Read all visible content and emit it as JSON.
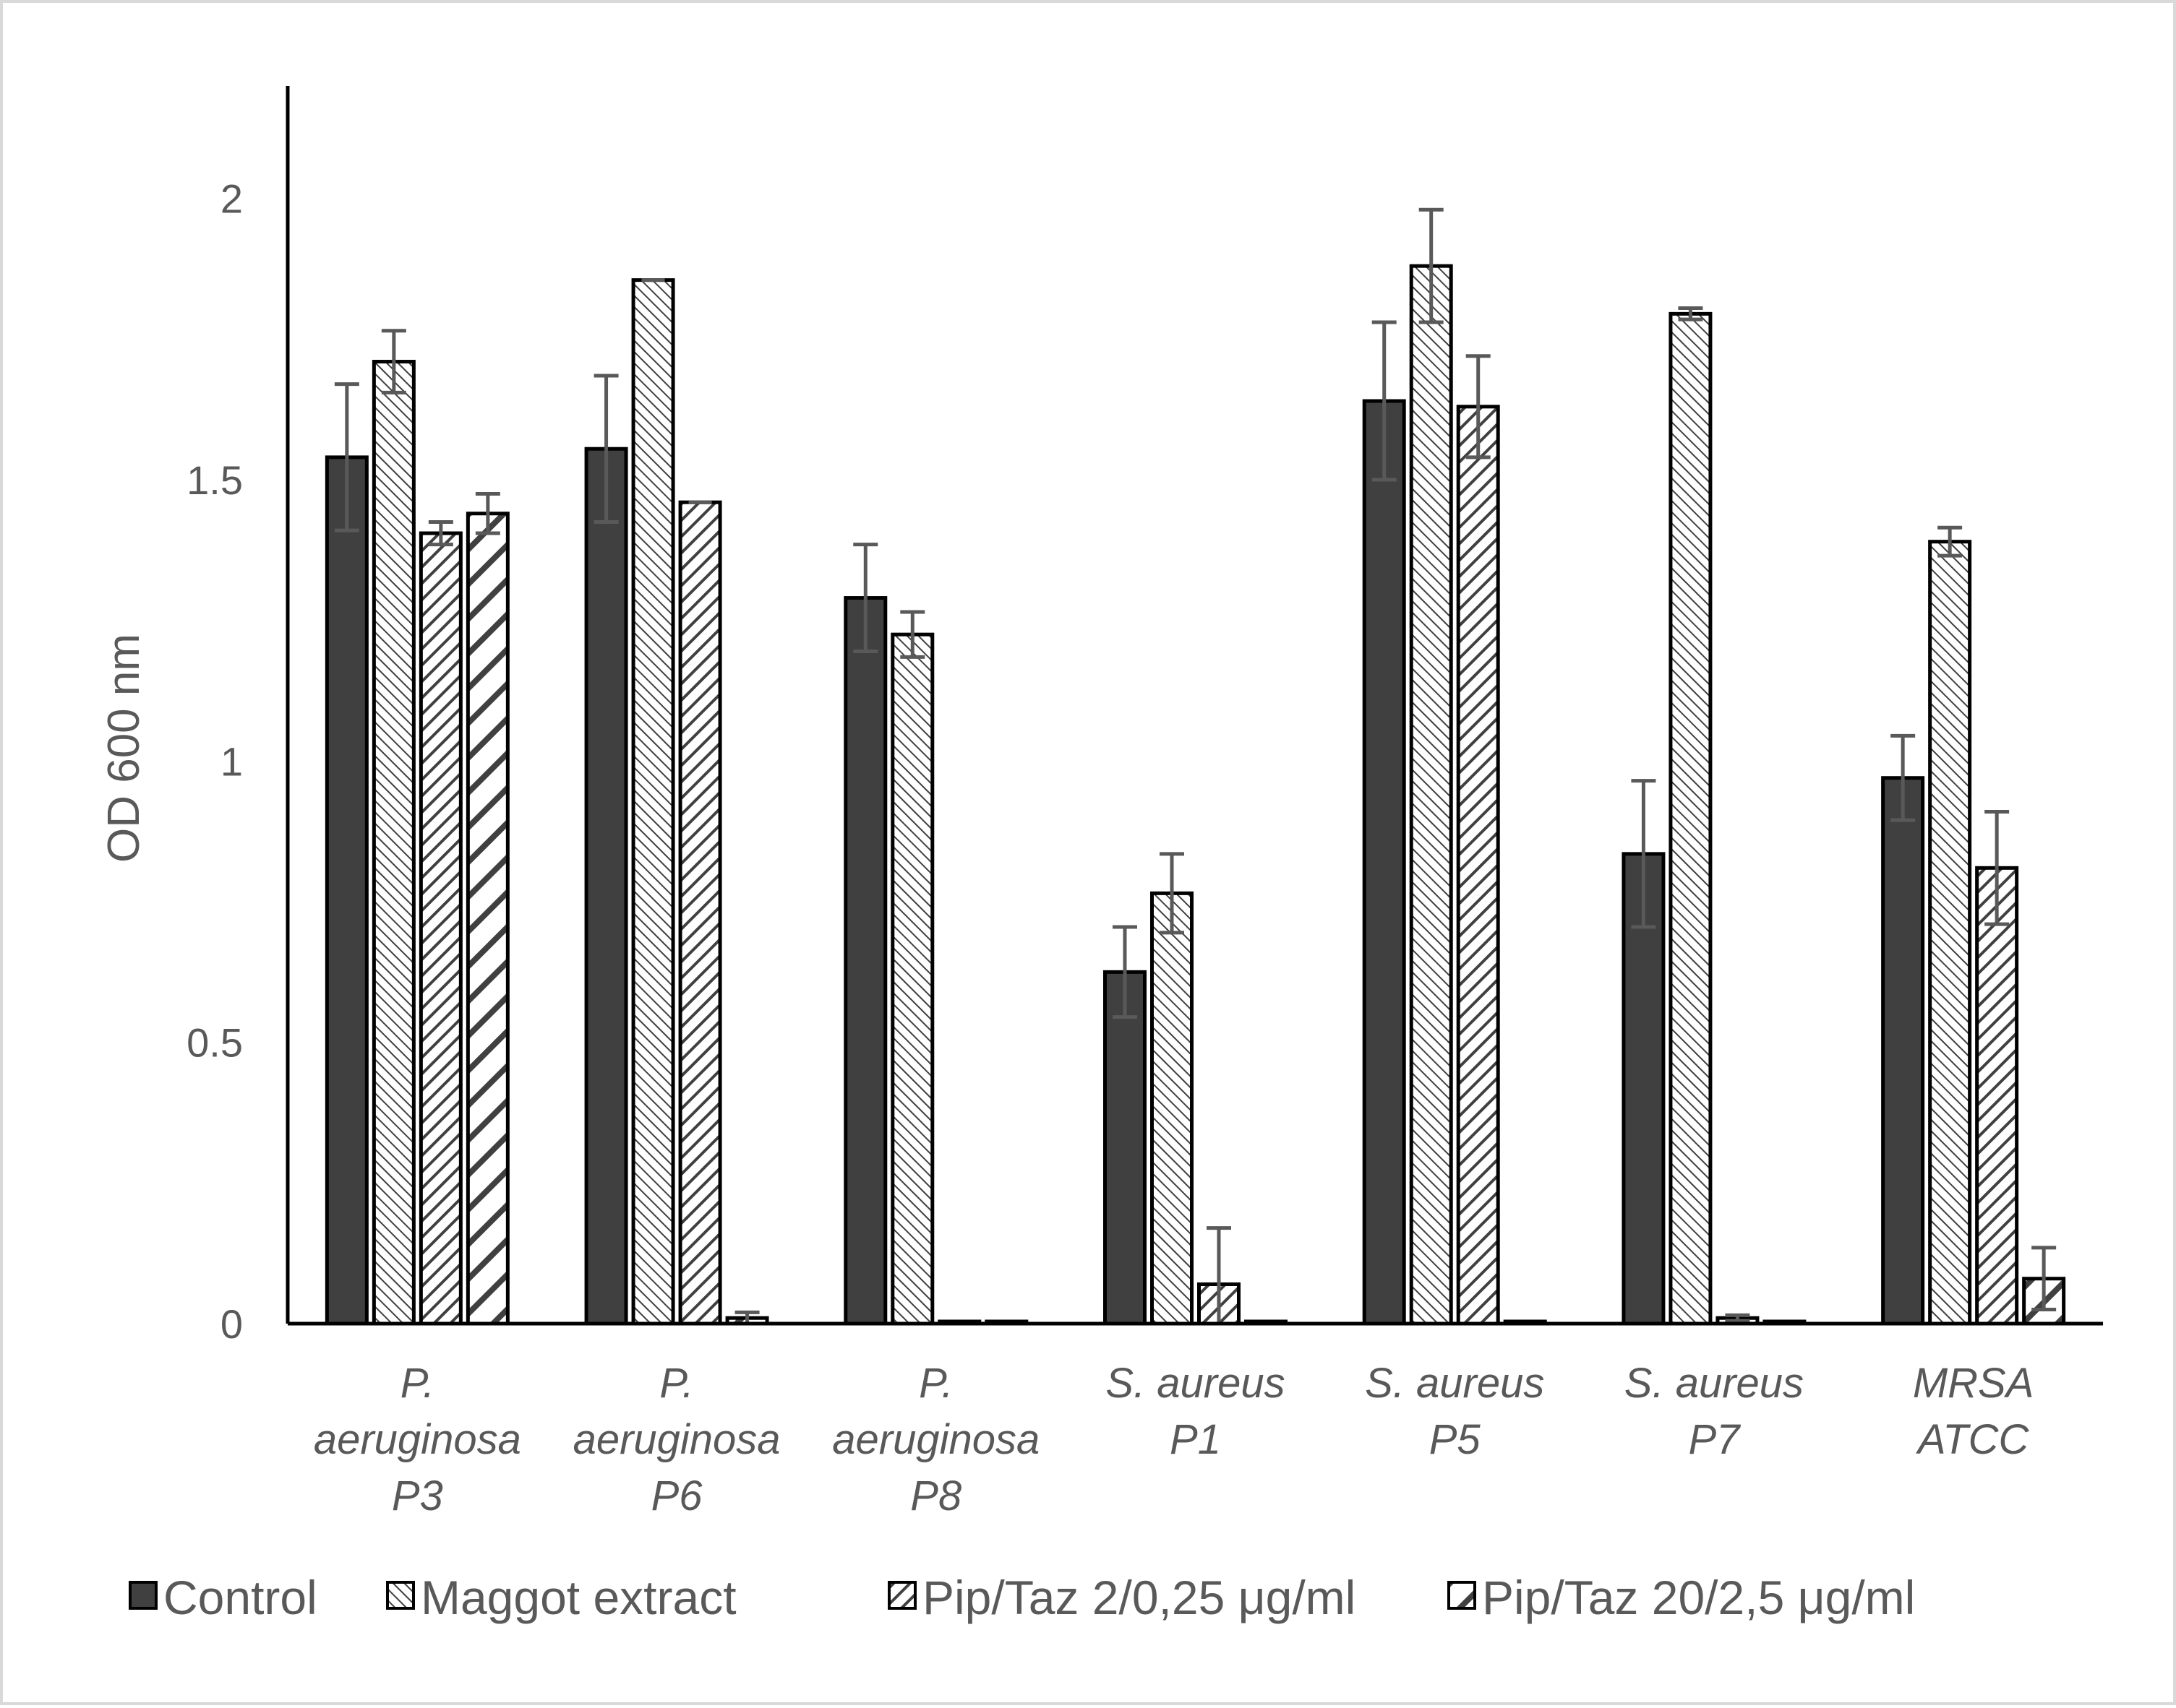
{
  "chart_data": {
    "type": "bar",
    "title": "",
    "xlabel": "",
    "ylabel": "OD 600 nm",
    "ylim": [
      0,
      2.2
    ],
    "yticks": [
      "0",
      "0.5",
      "1",
      "1.5",
      "2"
    ],
    "ytick_values": [
      0,
      0.5,
      1,
      1.5,
      2
    ],
    "grid": false,
    "legend_position": "bottom",
    "categories": [
      [
        "P.",
        "aeruginosa",
        "P3"
      ],
      [
        "P.",
        "aeruginosa",
        "P6"
      ],
      [
        "P.",
        "aeruginosa",
        "P8"
      ],
      [
        "S. aureus",
        "P1"
      ],
      [
        "S. aureus",
        "P5"
      ],
      [
        "S. aureus",
        "P7"
      ],
      [
        "MRSA",
        "ATCC"
      ]
    ],
    "series": [
      {
        "name": "Control",
        "pattern": "solid",
        "values": [
          1.54,
          1.555,
          1.29,
          0.625,
          1.64,
          0.835,
          0.97
        ],
        "errors": [
          0.13,
          0.13,
          0.095,
          0.08,
          0.14,
          0.13,
          0.075
        ]
      },
      {
        "name": "Maggot extract",
        "pattern": "dense-dots",
        "values": [
          1.71,
          1.855,
          1.225,
          0.765,
          1.88,
          1.795,
          1.39
        ],
        "errors": [
          0.055,
          0.0,
          0.04,
          0.07,
          0.1,
          0.01,
          0.025
        ]
      },
      {
        "name": "Pip/Taz 2/0,25 μg/ml",
        "pattern": "diagonal",
        "values": [
          1.405,
          1.46,
          0.0,
          0.07,
          1.63,
          0.01,
          0.81
        ],
        "errors": [
          0.02,
          0.0,
          0.0,
          0.1,
          0.09,
          0.005,
          0.1
        ]
      },
      {
        "name": "Pip/Taz 20/2,5 μg/ml",
        "pattern": "wide-diagonal",
        "values": [
          1.44,
          0.01,
          0.0,
          0.0,
          0.0,
          0.0,
          0.08
        ],
        "errors": [
          0.035,
          0.01,
          0.0,
          0.0,
          0.0,
          0.0,
          0.055
        ]
      }
    ],
    "colors": {
      "bar_fill": "#404040",
      "bar_outline": "#000000",
      "pattern_bg": "#ffffff",
      "error_bar": "#595959",
      "axis": "#000000",
      "text": "#595959",
      "frame": "#d9d9d9"
    }
  }
}
